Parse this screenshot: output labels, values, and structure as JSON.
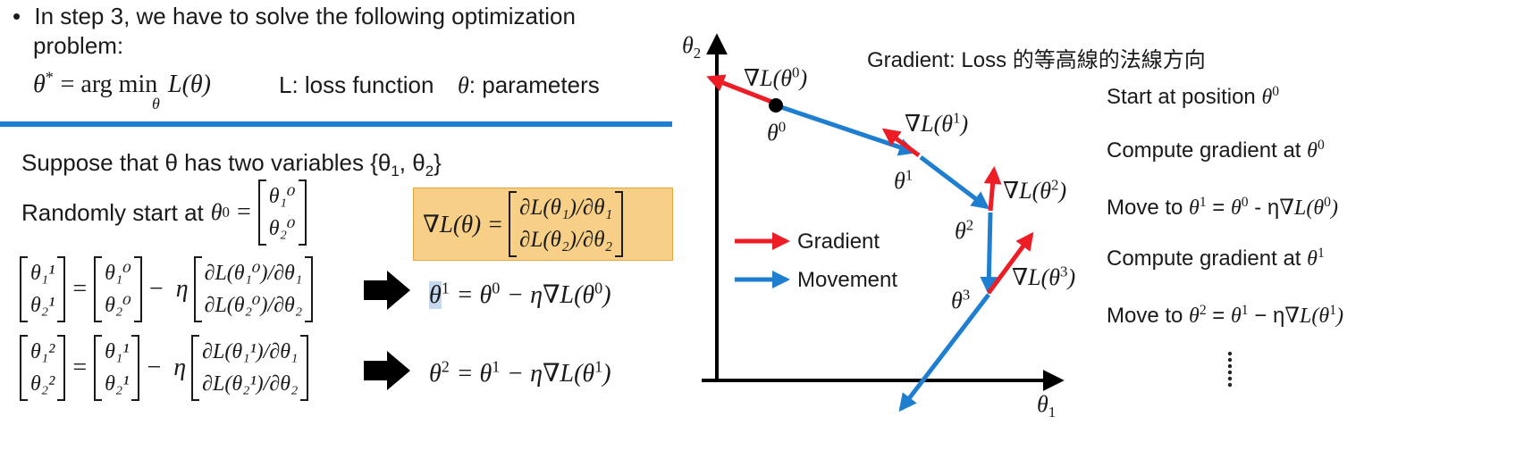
{
  "left": {
    "bullet": "•",
    "step_line1": "In step 3, we have to solve the following optimization",
    "step_line2": "problem:",
    "objective_lhs": "θ",
    "objective_star": "*",
    "objective_eq": "= arg min",
    "objective_sub": "θ",
    "objective_rhs": "L(θ)",
    "loss_def": "L: loss function",
    "param_symbol": "θ",
    "param_def": ": parameters",
    "suppose": "Suppose that θ has two variables {θ",
    "suppose_sub1": "1",
    "suppose_mid": ", θ",
    "suppose_sub2": "2",
    "suppose_end": "}",
    "random_start": "Randomly start at",
    "theta0": "θ",
    "sup0": "0",
    "equals": "=",
    "start_vec": [
      "θ₁⁰",
      "θ₂⁰"
    ],
    "grad_lhs": "∇L(θ) =",
    "grad_vec": [
      "∂L(θ₁)/∂θ₁",
      "∂L(θ₂)/∂θ₂"
    ],
    "update1": {
      "lhs": [
        "θ₁¹",
        "θ₂¹"
      ],
      "prev": [
        "θ₁⁰",
        "θ₂⁰"
      ],
      "minus": "−",
      "eta": "η",
      "grad": [
        "∂L(θ₁⁰)/∂θ₁",
        "∂L(θ₂⁰)/∂θ₂"
      ],
      "result_a": "θ",
      "result_sup": "1",
      "result_b": "= θ",
      "result_sup2": "0",
      "result_c": "− η∇L(θ",
      "result_sup3": "0",
      "result_d": ")"
    },
    "update2": {
      "lhs": [
        "θ₁²",
        "θ₂²"
      ],
      "prev": [
        "θ₁¹",
        "θ₂¹"
      ],
      "minus": "−",
      "eta": "η",
      "grad": [
        "∂L(θ₁¹)/∂θ₁",
        "∂L(θ₂¹)/∂θ₂"
      ],
      "result_a": "θ",
      "result_sup": "2",
      "result_b": "= θ",
      "result_sup2": "1",
      "result_c": "− η∇L(θ",
      "result_sup3": "1",
      "result_d": ")"
    }
  },
  "diagram": {
    "heading": "Gradient: Loss 的等高線的法線方向",
    "y_axis": "θ",
    "y_axis_sub": "2",
    "x_axis": "θ",
    "x_axis_sub": "1",
    "points": [
      {
        "label": "θ",
        "sup": "0",
        "grad_label": "∇L(θ",
        "grad_sup": "0"
      },
      {
        "label": "θ",
        "sup": "1",
        "grad_label": "∇L(θ",
        "grad_sup": "1"
      },
      {
        "label": "θ",
        "sup": "2",
        "grad_label": "∇L(θ",
        "grad_sup": "2"
      },
      {
        "label": "θ",
        "sup": "3",
        "grad_label": "∇L(θ",
        "grad_sup": "3"
      }
    ],
    "paren_close": ")",
    "legend": [
      {
        "name": "Gradient",
        "color": "#ee1c25"
      },
      {
        "name": "Movement",
        "color": "#1e7fd0"
      }
    ]
  },
  "steps": [
    {
      "text": "Start at position",
      "sym": "θ",
      "sup": "0"
    },
    {
      "text": "Compute gradient at",
      "sym": "θ",
      "sup": "0"
    },
    {
      "text": "Move to",
      "sym": "θ",
      "sup": "1",
      "rest_a": " = ",
      "sym2": "θ",
      "sup2": "0",
      "rest_b": " - η",
      "sym3": "∇L(θ",
      "sup3": "0",
      "close": ")"
    },
    {
      "text": "Compute gradient at",
      "sym": "θ",
      "sup": "1"
    },
    {
      "text": "Move to",
      "sym": "θ",
      "sup": "2",
      "rest_a": " = ",
      "sym2": "θ",
      "sup2": "1",
      "rest_b": " − η",
      "sym3": "∇L(θ",
      "sup3": "1",
      "close": ")"
    }
  ],
  "colors": {
    "gradient": "#ee1c25",
    "movement": "#1e7fd0",
    "divider": "#1e7fd0",
    "box": "#f7cf86"
  }
}
